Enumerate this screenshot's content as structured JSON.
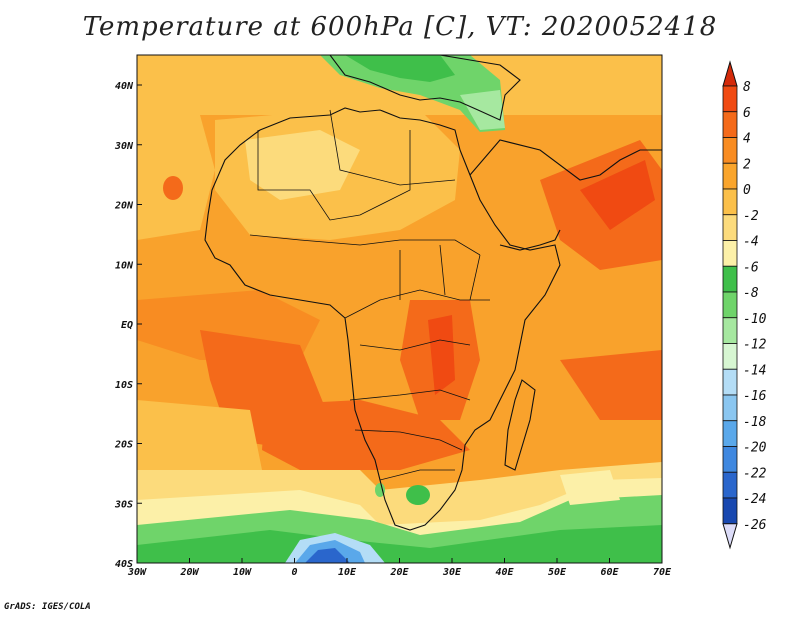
{
  "title": "Temperature at 600hPa [C], VT: 2020052418",
  "credit": "GrADS: IGES/COLA",
  "colorbar": {
    "labels": [
      "8",
      "6",
      "4",
      "2",
      "0",
      "-2",
      "-4",
      "-6",
      "-8",
      "-10",
      "-12",
      "-14",
      "-16",
      "-18",
      "-20",
      "-22",
      "-24",
      "-26"
    ],
    "colors_high_to_low": [
      "#f04a12",
      "#f46a1a",
      "#f88c22",
      "#faa52c",
      "#fbc04a",
      "#fcdb7c",
      "#fcf0a8",
      "#3fbf4a",
      "#6fd46a",
      "#a6e8a0",
      "#d7f6d2",
      "#b4ddf6",
      "#8ac6f0",
      "#5aa8ea",
      "#3f88e0",
      "#2a66cc",
      "#1848b0",
      "#0a1e7a"
    ],
    "top_cap_color": "#d42a0a",
    "bottom_cap_color": "#dcdcf8"
  },
  "axes": {
    "x_ticks": [
      "30W",
      "20W",
      "10W",
      "0",
      "10E",
      "20E",
      "30E",
      "40E",
      "50E",
      "60E",
      "70E"
    ],
    "y_ticks": [
      "40N",
      "30N",
      "20N",
      "10N",
      "EQ",
      "10S",
      "20S",
      "30S",
      "40S"
    ]
  },
  "field": {
    "variable": "Temperature",
    "level": "600hPa",
    "units": "C",
    "valid_time": "2020052418",
    "lon_range": [
      -30,
      75
    ],
    "lat_range": [
      -40,
      45
    ]
  }
}
